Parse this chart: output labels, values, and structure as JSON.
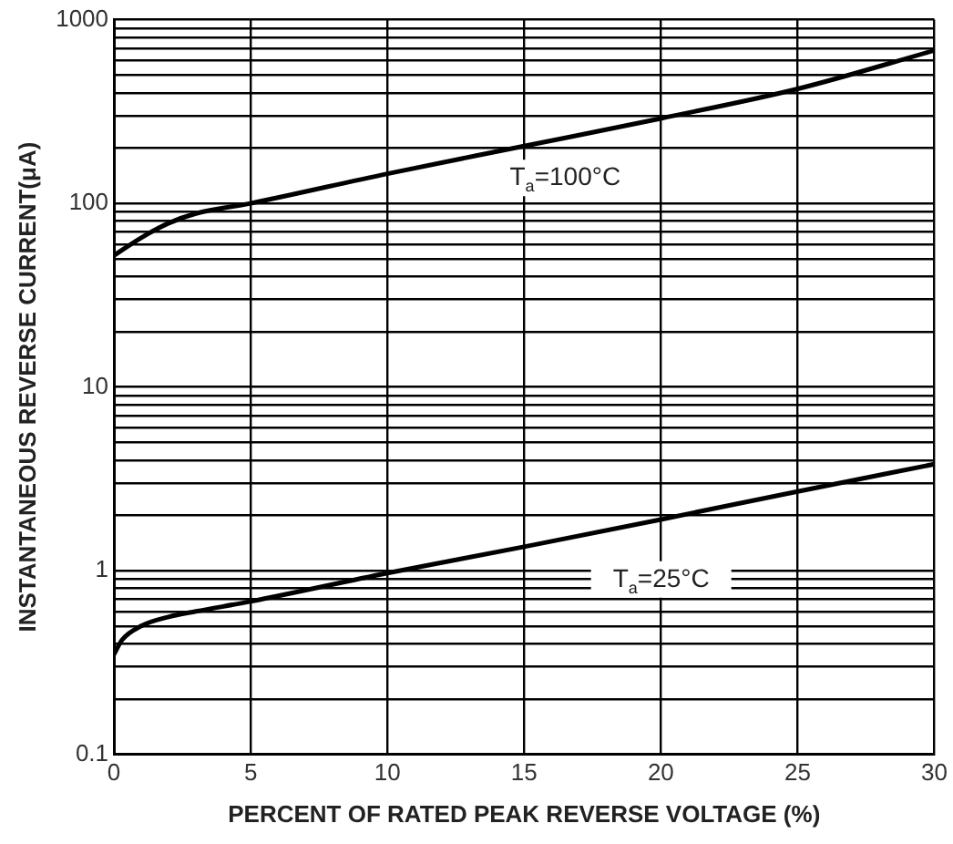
{
  "chart_data": {
    "type": "line",
    "xlabel": "PERCENT OF RATED PEAK REVERSE VOLTAGE (%)",
    "ylabel": "INSTANTANEOUS REVERSE CURRENT(μA)",
    "log": "y",
    "grid": true,
    "legend": false,
    "marker": "none",
    "line_style": "solid",
    "xlim": [
      0,
      30
    ],
    "xticks": [
      0,
      5,
      10,
      15,
      20,
      25,
      30
    ],
    "ylim": [
      0.1,
      1000
    ],
    "yticks": [
      0.1,
      {
        "value": 0.2,
        "label": null
      },
      {
        "value": 0.3,
        "label": null
      },
      {
        "value": 0.4,
        "label": null
      },
      {
        "value": 0.5,
        "label": null
      },
      {
        "value": 0.6,
        "label": null
      },
      {
        "value": 0.7,
        "label": null
      },
      {
        "value": 0.8,
        "label": null
      },
      {
        "value": 0.9,
        "label": null
      },
      1,
      {
        "value": 2,
        "label": null
      },
      {
        "value": 3,
        "label": null
      },
      {
        "value": 4,
        "label": null
      },
      {
        "value": 5,
        "label": null
      },
      {
        "value": 6,
        "label": null
      },
      {
        "value": 7,
        "label": null
      },
      {
        "value": 8,
        "label": null
      },
      {
        "value": 9,
        "label": null
      },
      10,
      {
        "value": 20,
        "label": null
      },
      {
        "value": 30,
        "label": null
      },
      {
        "value": 40,
        "label": null
      },
      {
        "value": 50,
        "label": null
      },
      {
        "value": 60,
        "label": null
      },
      {
        "value": 70,
        "label": null
      },
      {
        "value": 80,
        "label": null
      },
      {
        "value": 90,
        "label": null
      },
      100,
      {
        "value": 200,
        "label": null
      },
      {
        "value": 300,
        "label": null
      },
      {
        "value": 400,
        "label": null
      },
      {
        "value": 500,
        "label": null
      },
      {
        "value": 600,
        "label": null
      },
      {
        "value": 700,
        "label": null
      },
      {
        "value": 800,
        "label": null
      },
      {
        "value": 900,
        "label": null
      },
      1000
    ],
    "series": [
      {
        "name": "T$_{a}$=100°C",
        "color": "#000000",
        "x": [
          0,
          1,
          2,
          3,
          5,
          10,
          15,
          20,
          25,
          30
        ],
        "values": [
          52,
          65,
          78,
          88,
          100,
          145,
          205,
          290,
          420,
          680
        ]
      },
      {
        "name": "T$_{a}$=25°C",
        "color": "#000000",
        "x": [
          0,
          0.3,
          1,
          2,
          3,
          5,
          10,
          15,
          20,
          25,
          30
        ],
        "values": [
          0.35,
          0.42,
          0.5,
          0.56,
          0.6,
          0.68,
          0.97,
          1.35,
          1.9,
          2.7,
          3.8
        ]
      }
    ]
  }
}
